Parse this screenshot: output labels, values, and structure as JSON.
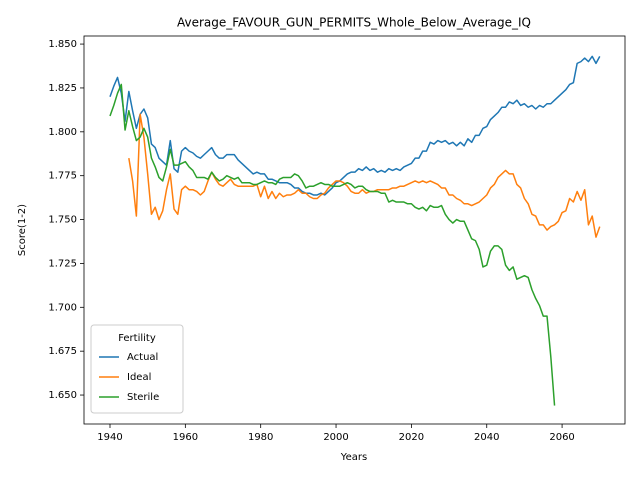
{
  "chart_data": {
    "type": "line",
    "title": "Average_FAVOUR_GUN_PERMITS_Whole_Below_Average_IQ",
    "xlabel": "Years",
    "ylabel": "Score(1-2)",
    "legend_title": "Fertility",
    "legend_loc": "lower left",
    "xlim": [
      1933.1,
      2076.7
    ],
    "ylim": [
      1.6335,
      1.8546
    ],
    "xticks": [
      1940,
      1960,
      1980,
      2000,
      2020,
      2040,
      2060
    ],
    "yticks": [
      {
        "value": 1.65,
        "label": "1.650"
      },
      {
        "value": 1.675,
        "label": "1.675"
      },
      {
        "value": 1.7,
        "label": "1.700"
      },
      {
        "value": 1.725,
        "label": "1.725"
      },
      {
        "value": 1.75,
        "label": "1.750"
      },
      {
        "value": 1.775,
        "label": "1.775"
      },
      {
        "value": 1.8,
        "label": "1.800"
      },
      {
        "value": 1.825,
        "label": "1.825"
      },
      {
        "value": 1.85,
        "label": "1.850"
      }
    ],
    "x": [
      1940,
      1941,
      1942,
      1943,
      1944,
      1945,
      1946,
      1947,
      1948,
      1949,
      1950,
      1951,
      1952,
      1953,
      1954,
      1955,
      1956,
      1957,
      1958,
      1959,
      1960,
      1961,
      1962,
      1963,
      1964,
      1965,
      1966,
      1967,
      1968,
      1969,
      1970,
      1971,
      1972,
      1973,
      1974,
      1975,
      1976,
      1977,
      1978,
      1979,
      1980,
      1981,
      1982,
      1983,
      1984,
      1985,
      1986,
      1987,
      1988,
      1989,
      1990,
      1991,
      1992,
      1993,
      1994,
      1995,
      1996,
      1997,
      1998,
      1999,
      2000,
      2001,
      2002,
      2003,
      2004,
      2005,
      2006,
      2007,
      2008,
      2009,
      2010,
      2011,
      2012,
      2013,
      2014,
      2015,
      2016,
      2017,
      2018,
      2019,
      2020,
      2021,
      2022,
      2023,
      2024,
      2025,
      2026,
      2027,
      2028,
      2029,
      2030,
      2031,
      2032,
      2033,
      2034,
      2035,
      2036,
      2037,
      2038,
      2039,
      2040,
      2041,
      2042,
      2043,
      2044,
      2045,
      2046,
      2047,
      2048,
      2049,
      2050,
      2051,
      2052,
      2053,
      2054,
      2055,
      2056,
      2057,
      2058,
      2059,
      2060,
      2061,
      2062,
      2063,
      2064,
      2065,
      2066,
      2067,
      2068,
      2069,
      2070
    ],
    "series": [
      {
        "name": "Actual",
        "color": "#1f77b4",
        "values": [
          1.82,
          1.826,
          1.831,
          1.822,
          1.806,
          1.823,
          1.812,
          1.802,
          1.81,
          1.813,
          1.808,
          1.793,
          1.791,
          1.785,
          1.783,
          1.781,
          1.795,
          1.779,
          1.777,
          1.789,
          1.791,
          1.789,
          1.788,
          1.786,
          1.785,
          1.787,
          1.789,
          1.791,
          1.787,
          1.785,
          1.785,
          1.787,
          1.787,
          1.787,
          1.784,
          1.782,
          1.78,
          1.778,
          1.776,
          1.777,
          1.776,
          1.776,
          1.773,
          1.773,
          1.772,
          1.771,
          1.771,
          1.771,
          1.77,
          1.768,
          1.768,
          1.766,
          1.765,
          1.765,
          1.764,
          1.764,
          1.765,
          1.764,
          1.766,
          1.768,
          1.771,
          1.772,
          1.774,
          1.776,
          1.777,
          1.777,
          1.779,
          1.778,
          1.78,
          1.778,
          1.779,
          1.777,
          1.778,
          1.777,
          1.779,
          1.778,
          1.779,
          1.778,
          1.78,
          1.781,
          1.782,
          1.785,
          1.785,
          1.789,
          1.789,
          1.794,
          1.793,
          1.795,
          1.794,
          1.795,
          1.793,
          1.794,
          1.792,
          1.794,
          1.792,
          1.796,
          1.794,
          1.798,
          1.798,
          1.802,
          1.803,
          1.807,
          1.809,
          1.811,
          1.814,
          1.814,
          1.817,
          1.816,
          1.818,
          1.815,
          1.816,
          1.814,
          1.815,
          1.813,
          1.815,
          1.814,
          1.816,
          1.816,
          1.818,
          1.82,
          1.822,
          1.824,
          1.827,
          1.828,
          1.839,
          1.84,
          1.842,
          1.84,
          1.843,
          1.839,
          1.843
        ]
      },
      {
        "name": "Ideal",
        "color": "#ff7f0e",
        "values": [
          null,
          null,
          null,
          null,
          null,
          1.785,
          1.772,
          1.752,
          1.81,
          1.797,
          1.776,
          1.753,
          1.757,
          1.75,
          1.755,
          1.767,
          1.776,
          1.756,
          1.753,
          1.767,
          1.769,
          1.767,
          1.767,
          1.766,
          1.764,
          1.766,
          1.772,
          1.777,
          1.773,
          1.77,
          1.769,
          1.771,
          1.773,
          1.77,
          1.769,
          1.769,
          1.769,
          1.769,
          1.769,
          1.77,
          1.763,
          1.769,
          1.762,
          1.766,
          1.762,
          1.765,
          1.763,
          1.764,
          1.764,
          1.765,
          1.767,
          1.765,
          1.765,
          1.763,
          1.762,
          1.762,
          1.764,
          1.765,
          1.768,
          1.77,
          1.772,
          1.772,
          1.771,
          1.769,
          1.766,
          1.765,
          1.765,
          1.767,
          1.765,
          1.766,
          1.766,
          1.767,
          1.767,
          1.767,
          1.767,
          1.768,
          1.768,
          1.769,
          1.769,
          1.77,
          1.771,
          1.772,
          1.771,
          1.772,
          1.771,
          1.772,
          1.771,
          1.77,
          1.768,
          1.768,
          1.764,
          1.764,
          1.762,
          1.761,
          1.759,
          1.759,
          1.758,
          1.759,
          1.76,
          1.762,
          1.764,
          1.768,
          1.77,
          1.774,
          1.776,
          1.778,
          1.776,
          1.776,
          1.77,
          1.768,
          1.762,
          1.759,
          1.753,
          1.752,
          1.747,
          1.747,
          1.744,
          1.746,
          1.747,
          1.749,
          1.754,
          1.755,
          1.762,
          1.76,
          1.766,
          1.761,
          1.767,
          1.747,
          1.752,
          1.74,
          1.746
        ]
      },
      {
        "name": "Sterile",
        "color": "#2ca02c",
        "values": [
          1.809,
          1.815,
          1.822,
          1.827,
          1.801,
          1.812,
          1.803,
          1.795,
          1.797,
          1.802,
          1.797,
          1.785,
          1.78,
          1.774,
          1.772,
          1.78,
          1.79,
          1.781,
          1.781,
          1.782,
          1.783,
          1.78,
          1.778,
          1.774,
          1.774,
          1.774,
          1.773,
          1.777,
          1.774,
          1.772,
          1.773,
          1.775,
          1.774,
          1.773,
          1.774,
          1.771,
          1.771,
          1.771,
          1.77,
          1.77,
          1.771,
          1.772,
          1.771,
          1.771,
          1.77,
          1.773,
          1.774,
          1.774,
          1.774,
          1.776,
          1.775,
          1.772,
          1.768,
          1.769,
          1.769,
          1.77,
          1.771,
          1.77,
          1.77,
          1.769,
          1.769,
          1.769,
          1.77,
          1.771,
          1.77,
          1.768,
          1.769,
          1.769,
          1.767,
          1.766,
          1.766,
          1.766,
          1.765,
          1.765,
          1.76,
          1.761,
          1.76,
          1.76,
          1.76,
          1.759,
          1.759,
          1.757,
          1.756,
          1.757,
          1.755,
          1.758,
          1.757,
          1.757,
          1.758,
          1.753,
          1.75,
          1.748,
          1.75,
          1.749,
          1.749,
          1.744,
          1.739,
          1.738,
          1.733,
          1.723,
          1.724,
          1.732,
          1.735,
          1.735,
          1.733,
          1.724,
          1.721,
          1.723,
          1.716,
          1.717,
          1.718,
          1.717,
          1.71,
          1.705,
          1.701,
          1.695,
          1.695,
          1.672,
          1.644,
          null,
          null,
          null,
          null,
          null,
          null,
          null,
          null,
          null,
          null,
          null,
          null
        ]
      }
    ]
  }
}
